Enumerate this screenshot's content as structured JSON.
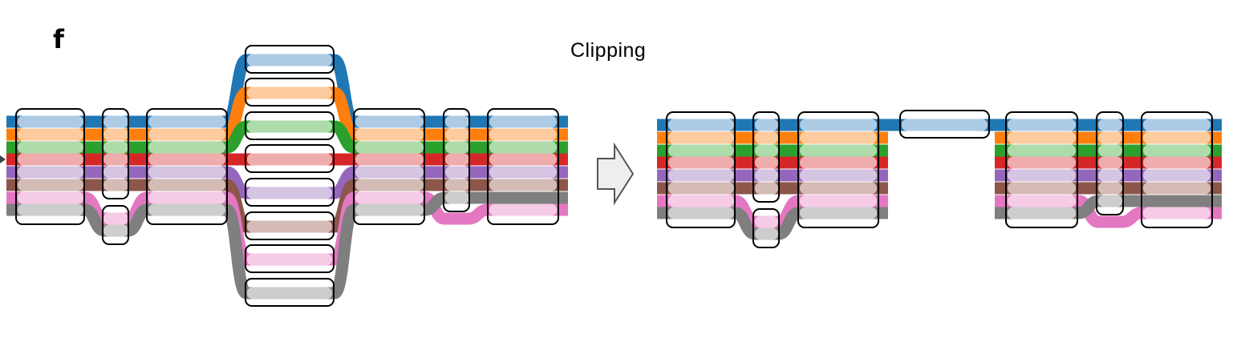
{
  "panel_label": "f",
  "operation_label": "Clipping",
  "colors": {
    "series": [
      "#1f77b4",
      "#ff7f0e",
      "#2ca02c",
      "#d62728",
      "#9467bd",
      "#8c564b",
      "#e377c2",
      "#7f7f7f"
    ],
    "tints": [
      "#aecbe5",
      "#fdcb9e",
      "#addbaa",
      "#efacad",
      "#d5c4e2",
      "#d4bbb6",
      "#f6cbe6",
      "#cdcdcd"
    ],
    "box_stroke": "#000000",
    "arrow_fill": "#eeeeee",
    "arrow_stroke": "#555555"
  },
  "icons": {
    "arrow": "right-arrow-icon"
  }
}
